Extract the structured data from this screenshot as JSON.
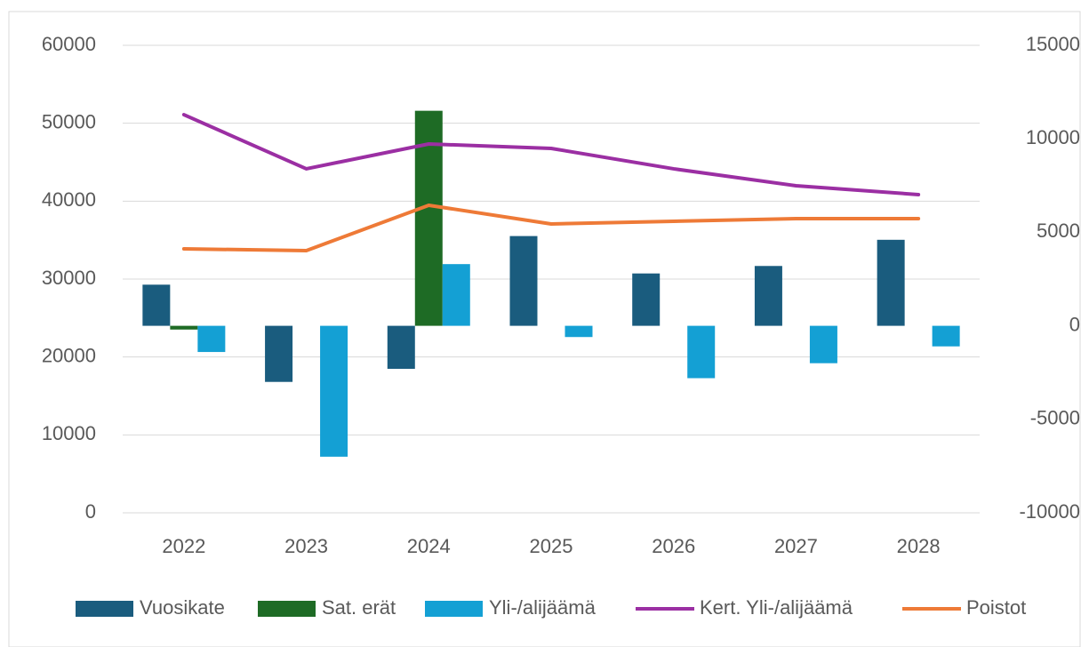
{
  "chart_data": {
    "type": "bar",
    "categories": [
      "2022",
      "2023",
      "2024",
      "2025",
      "2026",
      "2027",
      "2028"
    ],
    "series": [
      {
        "name": "Vuosikate",
        "type": "bar",
        "axis": "y2",
        "color": "#1a5c7e",
        "values": [
          2200,
          -3000,
          -2300,
          4800,
          2800,
          3200,
          4600
        ]
      },
      {
        "name": "Sat. erät",
        "type": "bar",
        "axis": "y2",
        "color": "#1e6b25",
        "values": [
          -200,
          0,
          11500,
          0,
          0,
          0,
          0
        ]
      },
      {
        "name": "Yli-/alijäämä",
        "type": "bar",
        "axis": "y2",
        "color": "#14a0d4",
        "values": [
          -1400,
          -7000,
          3300,
          -600,
          -2800,
          -2000,
          -1100
        ]
      },
      {
        "name": "Kert. Yli-/alijäämä",
        "type": "line",
        "axis": "y",
        "color": "#9b2fa3",
        "values": [
          51100,
          44150,
          47340,
          46770,
          44150,
          41980,
          40840
        ]
      },
      {
        "name": "Poistot",
        "type": "line",
        "axis": "y",
        "color": "#ee7a37",
        "values": [
          33880,
          33650,
          39470,
          37070,
          37420,
          37760,
          37760
        ]
      }
    ],
    "ylim": [
      0,
      60000
    ],
    "yticks": [
      0,
      10000,
      20000,
      30000,
      40000,
      50000,
      60000
    ],
    "y2lim": [
      -10000,
      15000
    ],
    "y2ticks": [
      -10000,
      -5000,
      0,
      5000,
      10000,
      15000
    ],
    "grid": true,
    "legend": "bottom"
  }
}
